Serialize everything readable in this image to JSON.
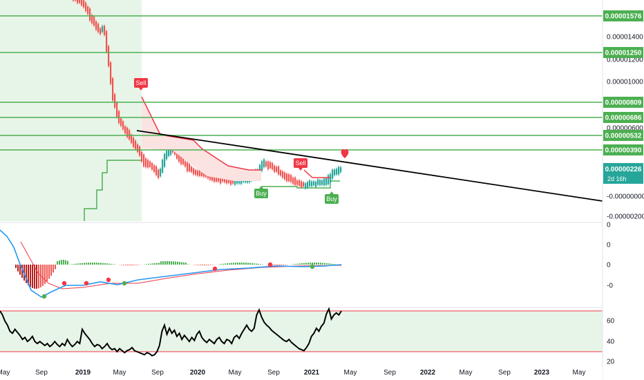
{
  "chart_data": [
    {
      "type": "candlestick",
      "panel": "price",
      "x_ticks": [
        "May",
        "Sep",
        "2019",
        "May",
        "Sep",
        "2020",
        "May",
        "Sep",
        "2021",
        "May",
        "Sep",
        "2022",
        "May",
        "Sep",
        "2023",
        "May"
      ],
      "y_tick_labels": [
        "0.00001400",
        "0.00001200",
        "0.00001000",
        "0.00000600",
        "-0.00000000",
        "-0.00000200"
      ],
      "horizontal_levels": [
        "0.00001576",
        "0.00001250",
        "0.00000809",
        "0.00000686",
        "0.00000532",
        "0.00000390"
      ],
      "current_price": "0.00000226",
      "countdown": "2d 16h",
      "level_color": "#4caf50",
      "current_price_color": "#26a69a",
      "trendline_color": "#000000",
      "sell_label": "Sell",
      "buy_label": "Buy",
      "signals": [
        {
          "label": "Sell",
          "date": "2019-06"
        },
        {
          "label": "Buy",
          "date": "2020-08"
        },
        {
          "label": "Sell",
          "date": "2020-10"
        },
        {
          "label": "Buy",
          "date": "2021-04"
        }
      ],
      "heart_color": "#f23645"
    },
    {
      "type": "macd",
      "panel": "macd",
      "y_tick_labels": [
        "0",
        "0",
        "0",
        "-0"
      ],
      "macd_color": "#2196f3",
      "signal_color": "#f23645"
    },
    {
      "type": "line",
      "panel": "rsi",
      "y_tick_labels": [
        "60",
        "40",
        "20"
      ],
      "upper_band": 70,
      "lower_band": 30,
      "ylim": [
        20,
        80
      ],
      "values": [
        70,
        66,
        60,
        56,
        50,
        48,
        52,
        49,
        46,
        42,
        44,
        40,
        42,
        45,
        40,
        38,
        40,
        38,
        36,
        38,
        35,
        37,
        40,
        37,
        35,
        38,
        36,
        42,
        38,
        35,
        37,
        40,
        38,
        52,
        48,
        45,
        42,
        38,
        35,
        37,
        36,
        33,
        35,
        38,
        34,
        32,
        33,
        30,
        33,
        31,
        29,
        31,
        32,
        34,
        31,
        30,
        29,
        28,
        27,
        29,
        28,
        26,
        27,
        30,
        36,
        50,
        56,
        47,
        53,
        48,
        51,
        45,
        48,
        42,
        46,
        43,
        40,
        44,
        41,
        47,
        50,
        44,
        41,
        39,
        42,
        40,
        38,
        42,
        44,
        40,
        38,
        42,
        41,
        38,
        44,
        46,
        43,
        48,
        52,
        56,
        52,
        50,
        53,
        66,
        71,
        64,
        59,
        56,
        54,
        51,
        49,
        47,
        45,
        43,
        41,
        40,
        42,
        39,
        37,
        35,
        33,
        32,
        31,
        34,
        38,
        45,
        48,
        53,
        50,
        55,
        58,
        67,
        72,
        62,
        66,
        68,
        66,
        70
      ]
    }
  ]
}
